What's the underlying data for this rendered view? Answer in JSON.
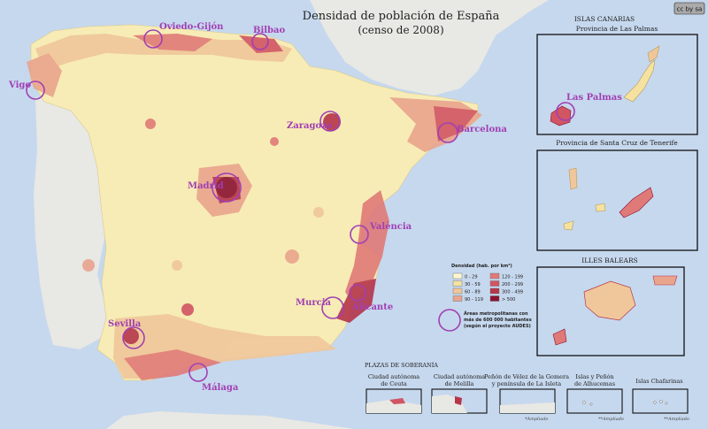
{
  "map": {
    "title_line1": "Densidad de población de España",
    "title_line2": "(censo de 2008)",
    "license_badge": "cc by sa",
    "colors": {
      "sea": "#c6d8ee",
      "neighbor_land": "#e8e8e4",
      "base_land": "#f7ecb5",
      "city_ring": "#a13fb4"
    },
    "cities": [
      {
        "name": "Oviedo-Gijón"
      },
      {
        "name": "Bilbao"
      },
      {
        "name": "Vigo"
      },
      {
        "name": "Zaragoza"
      },
      {
        "name": "Barcelona"
      },
      {
        "name": "Madrid"
      },
      {
        "name": "València"
      },
      {
        "name": "Murcia"
      },
      {
        "name": "Alicante"
      },
      {
        "name": "Sevilla"
      },
      {
        "name": "Málaga"
      }
    ],
    "legend": {
      "title": "Densidad (hab. por km²)",
      "classes": [
        {
          "label": "0 - 29",
          "color": "#fdf6cf"
        },
        {
          "label": "30 - 59",
          "color": "#f5e2a0"
        },
        {
          "label": "60 - 89",
          "color": "#f0c79a"
        },
        {
          "label": "90 - 119",
          "color": "#e9a48e"
        },
        {
          "label": "120 - 199",
          "color": "#e07a78"
        },
        {
          "label": "200 - 299",
          "color": "#d15563"
        },
        {
          "label": "300 - 499",
          "color": "#b5354a"
        },
        {
          "label": "> 500",
          "color": "#8a1231"
        }
      ],
      "areas_note_line1": "Áreas metropolitanas con",
      "areas_note_line2": "más de 600 000 habitantes",
      "areas_note_line3": "(según el proyecto AUDES)"
    },
    "insets": {
      "canarias_header": "ISLAS CANARIAS",
      "las_palmas_title": "Provincia de Las Palmas",
      "las_palmas_city": "Las Palmas",
      "tenerife_title": "Provincia de Santa Cruz de Tenerife",
      "baleares_title": "ILLES BALEARS"
    },
    "plazas": {
      "header": "PLAZAS DE SOBERANÍA",
      "ceuta_line1": "Ciudad autónoma",
      "ceuta_line2": "de Ceuta",
      "melilla_line1": "Ciudad autónoma",
      "melilla_line2": "de Melilla",
      "velez_line1": "Peñón de Vélez de la Gomera",
      "velez_line2": "y península de La Isleta",
      "alhucemas_line1": "Islas y Peñón",
      "alhucemas_line2": "de Alhucemas",
      "chafarinas_line1": "Islas Chafarinas",
      "ampliado": "*Ampliado",
      "ampliado2": "**Ampliado"
    }
  }
}
